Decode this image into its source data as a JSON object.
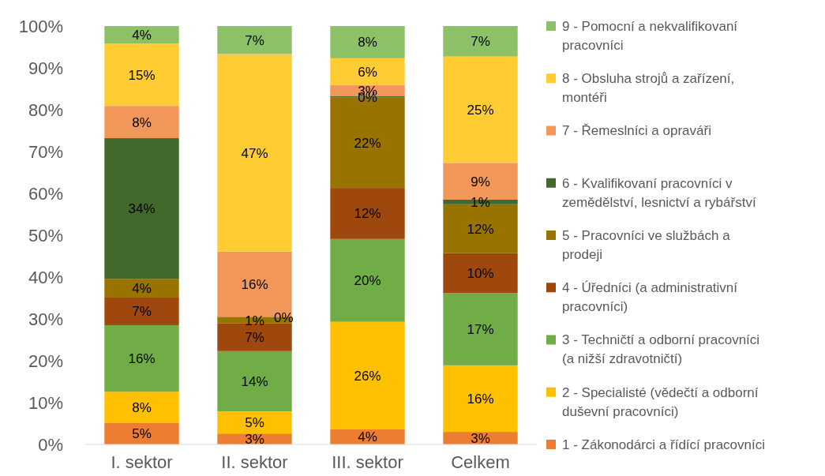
{
  "chart_data": {
    "type": "bar",
    "stacked": true,
    "categories": [
      "I. sektor",
      "II. sektor",
      "III. sektor",
      "Celkem"
    ],
    "ylim": [
      0,
      100
    ],
    "yticks": [
      {
        "value": 0,
        "label": "0%"
      },
      {
        "value": 10,
        "label": "10%"
      },
      {
        "value": 20,
        "label": "20%"
      },
      {
        "value": 30,
        "label": "30%"
      },
      {
        "value": 40,
        "label": "40%"
      },
      {
        "value": 50,
        "label": "50%"
      },
      {
        "value": 60,
        "label": "60%"
      },
      {
        "value": 70,
        "label": "70%"
      },
      {
        "value": 80,
        "label": "80%"
      },
      {
        "value": 90,
        "label": "90%"
      },
      {
        "value": 100,
        "label": "100%"
      }
    ],
    "legend": "right",
    "series": [
      {
        "name": "1 - Zákonodárci a řídící pracovníci",
        "color": "#ed7d31",
        "values": [
          5.1,
          2.6,
          3.6,
          3.0
        ],
        "value_labels": [
          "5%",
          "3%",
          "4%",
          "3%"
        ]
      },
      {
        "name": "2 - Specialisté (vědečtí a odborní duševní pracovníci)",
        "color": "#ffc000",
        "values": [
          7.5,
          5.3,
          25.7,
          15.9
        ],
        "value_labels": [
          "8%",
          "5%",
          "26%",
          "16%"
        ]
      },
      {
        "name": "3 - Techničtí a odborní pracovníci (a nižší zdravotničtí)",
        "color": "#70ad47",
        "values": [
          15.9,
          14.4,
          19.8,
          17.3
        ],
        "value_labels": [
          "16%",
          "14%",
          "20%",
          "17%"
        ]
      },
      {
        "name": "4 - Úředníci (a administrativní pracovníci)",
        "color": "#9e480e",
        "values": [
          6.6,
          6.6,
          12.2,
          9.5
        ],
        "value_labels": [
          "7%",
          "7%",
          "12%",
          "10%"
        ]
      },
      {
        "name": "5 - Pracovníci ve službách a prodeji",
        "color": "#997300",
        "values": [
          4.5,
          1.5,
          21.6,
          11.7
        ],
        "value_labels": [
          "4%",
          "1%",
          "22%",
          "12%"
        ]
      },
      {
        "name": "6 - Kvalifikovaní pracovníci v zemědělství, lesnictví a rybářství",
        "color": "#43682b",
        "values": [
          33.6,
          0.1,
          0.3,
          1.1
        ],
        "value_labels": [
          "34%",
          "0%",
          "0%",
          "1%"
        ]
      },
      {
        "name": "7 - Řemeslníci a opraváři",
        "color": "#f1975a",
        "values": [
          7.7,
          15.6,
          2.7,
          8.8
        ],
        "value_labels": [
          "8%",
          "16%",
          "3%",
          "9%"
        ]
      },
      {
        "name": "8 - Obsluha strojů a zařízení, montéři",
        "color": "#ffcd33",
        "values": [
          14.9,
          47.2,
          6.4,
          25.4
        ],
        "value_labels": [
          "15%",
          "47%",
          "6%",
          "25%"
        ]
      },
      {
        "name": "9 - Pomocní a nekvalifikovaní pracovníci",
        "color": "#8cc168",
        "values": [
          4.2,
          6.7,
          7.7,
          7.3
        ],
        "value_labels": [
          "4%",
          "7%",
          "8%",
          "7%"
        ]
      }
    ]
  }
}
